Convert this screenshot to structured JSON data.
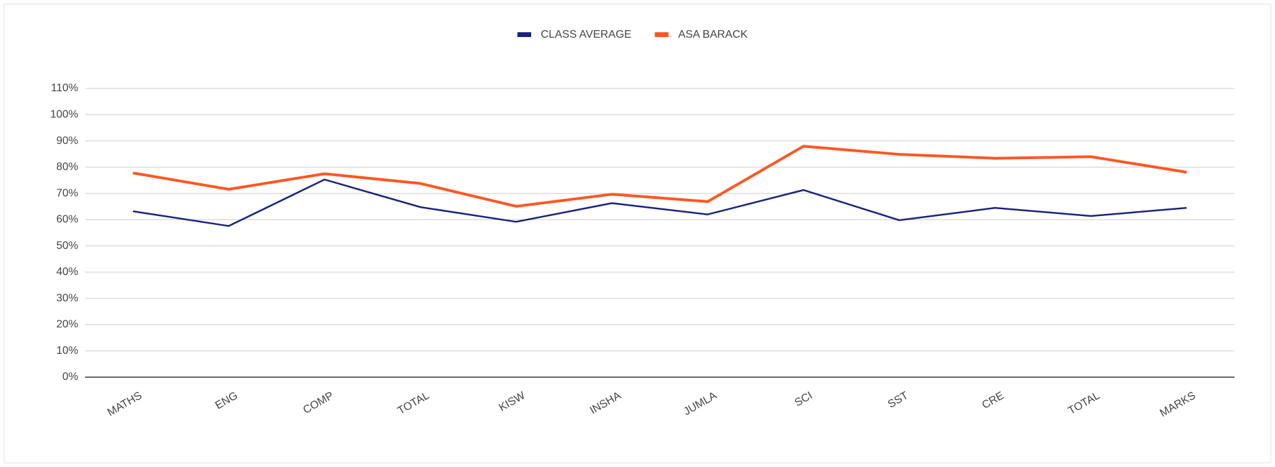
{
  "chart_data": {
    "type": "line",
    "categories": [
      "MATHS",
      "ENG",
      "COMP",
      "TOTAL",
      "KISW",
      "INSHA",
      "JUMLA",
      "SCI",
      "SST",
      "CRE",
      "TOTAL",
      "MARKS"
    ],
    "series": [
      {
        "name": "CLASS AVERAGE",
        "color": "#1a237e",
        "values": [
          63.2,
          57.6,
          75.3,
          64.8,
          59.2,
          66.3,
          62.0,
          71.3,
          59.8,
          64.5,
          61.4,
          64.5
        ]
      },
      {
        "name": "ASA BARACK",
        "color": "#ff5722",
        "values": [
          77.8,
          71.6,
          77.5,
          73.8,
          65.1,
          69.7,
          66.9,
          88.0,
          84.9,
          83.4,
          84.0,
          78.1
        ]
      }
    ],
    "ylim": [
      0,
      110
    ],
    "yticks": [
      {
        "value": 0,
        "label": "0%"
      },
      {
        "value": 10,
        "label": "10%"
      },
      {
        "value": 20,
        "label": "20%"
      },
      {
        "value": 30,
        "label": "30%"
      },
      {
        "value": 40,
        "label": "40%"
      },
      {
        "value": 50,
        "label": "50%"
      },
      {
        "value": 60,
        "label": "60%"
      },
      {
        "value": 70,
        "label": "70%"
      },
      {
        "value": 80,
        "label": "80%"
      },
      {
        "value": 90,
        "label": "90%"
      },
      {
        "value": 100,
        "label": "100%"
      },
      {
        "value": 110,
        "label": "110%"
      }
    ],
    "grid": true,
    "legend": "top"
  }
}
